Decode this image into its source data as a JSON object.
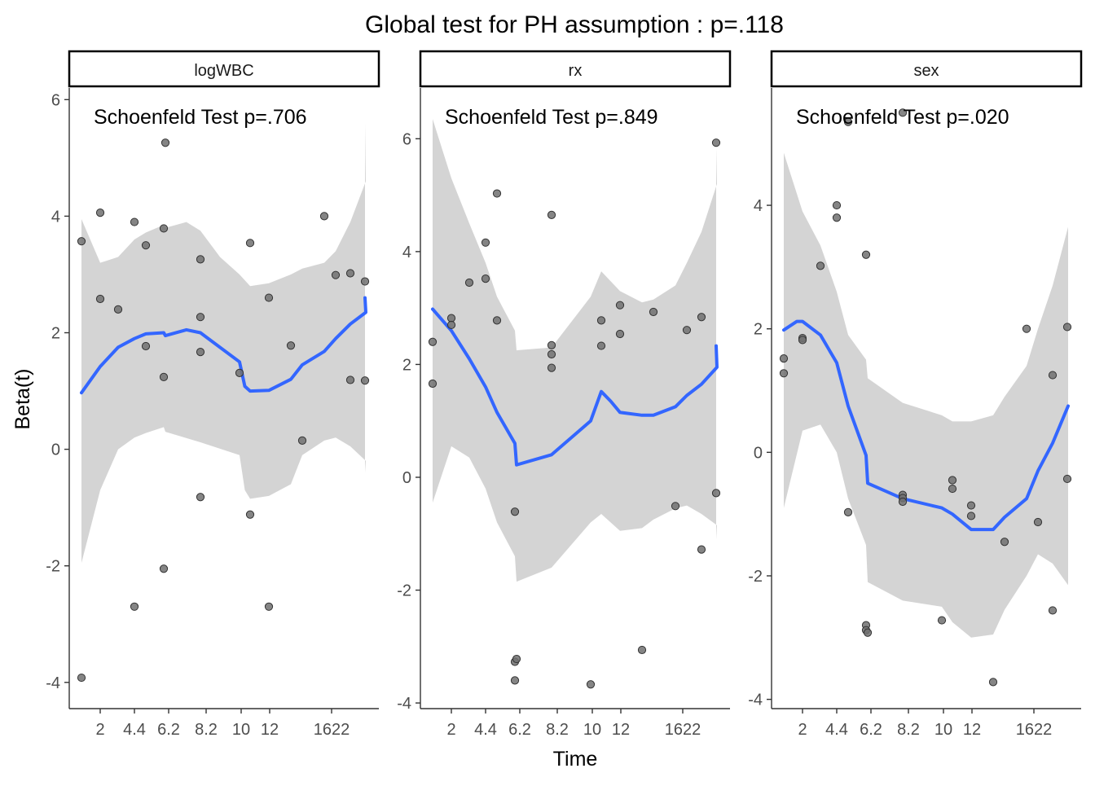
{
  "title": "Global test for PH assumption : p=.118",
  "xlabel": "Time",
  "ylabel": "Beta(t)",
  "colors": {
    "smooth": "#3366FF",
    "band": "#D4D4D4",
    "point_fill": "#707070",
    "point_stroke": "#333333",
    "axis": "#333333",
    "text": "#000000",
    "tick_text": "#4D4D4D"
  },
  "chart_data": [
    {
      "type": "scatter",
      "panel": "logWBC",
      "annotation": "Schoenfeld Test p=.706",
      "x_ticks": [
        "2",
        "4.4",
        "6.2",
        "8.2",
        "10",
        "12",
        "1622"
      ],
      "y_ticks": [
        -4,
        -2,
        0,
        2,
        4,
        6
      ],
      "ylim": [
        -4.45,
        6.2
      ],
      "points": [
        [
          0,
          3.57
        ],
        [
          0,
          -3.92
        ],
        [
          1,
          4.06
        ],
        [
          1,
          2.58
        ],
        [
          2,
          2.4
        ],
        [
          3,
          3.9
        ],
        [
          3,
          -2.7
        ],
        [
          4,
          3.5
        ],
        [
          4,
          1.77
        ],
        [
          5,
          3.79
        ],
        [
          5,
          1.24
        ],
        [
          5,
          -2.05
        ],
        [
          6,
          5.26
        ],
        [
          7,
          3.26
        ],
        [
          7,
          2.27
        ],
        [
          7,
          1.67
        ],
        [
          7,
          -0.82
        ],
        [
          8,
          1.31
        ],
        [
          9,
          3.54
        ],
        [
          9,
          -1.12
        ],
        [
          10,
          2.6
        ],
        [
          10,
          -2.7
        ],
        [
          11,
          1.78
        ],
        [
          12,
          0.15
        ],
        [
          13,
          4.0
        ],
        [
          14,
          2.99
        ],
        [
          15,
          3.02
        ],
        [
          15,
          1.19
        ],
        [
          17,
          2.88
        ],
        [
          17,
          1.18
        ]
      ],
      "smooth": [
        [
          0,
          0.97
        ],
        [
          1,
          1.42
        ],
        [
          2,
          1.75
        ],
        [
          3,
          1.9
        ],
        [
          4,
          1.98
        ],
        [
          5,
          2.0
        ],
        [
          6,
          1.95
        ],
        [
          6.6,
          2.05
        ],
        [
          7,
          2.0
        ],
        [
          8,
          1.5
        ],
        [
          8.5,
          1.08
        ],
        [
          9,
          1.0
        ],
        [
          10,
          1.01
        ],
        [
          11,
          1.2
        ],
        [
          12,
          1.45
        ],
        [
          13,
          1.68
        ],
        [
          14,
          1.9
        ],
        [
          15,
          2.15
        ],
        [
          16,
          2.35
        ],
        [
          17,
          2.6
        ]
      ],
      "band_upper": [
        [
          0,
          3.95
        ],
        [
          1,
          3.2
        ],
        [
          2,
          3.3
        ],
        [
          3,
          3.6
        ],
        [
          4,
          3.72
        ],
        [
          5,
          3.85
        ],
        [
          6,
          3.8
        ],
        [
          6.6,
          3.9
        ],
        [
          7,
          3.75
        ],
        [
          7.5,
          3.3
        ],
        [
          8,
          3.0
        ],
        [
          8.5,
          2.9
        ],
        [
          9,
          2.8
        ],
        [
          10,
          2.85
        ],
        [
          11,
          3.0
        ],
        [
          12,
          3.1
        ],
        [
          13,
          3.2
        ],
        [
          14,
          3.4
        ],
        [
          15,
          3.9
        ],
        [
          16,
          4.6
        ],
        [
          17,
          5.6
        ]
      ],
      "band_lower": [
        [
          0,
          -1.95
        ],
        [
          1,
          -0.7
        ],
        [
          2,
          0.0
        ],
        [
          3,
          0.2
        ],
        [
          4,
          0.28
        ],
        [
          5,
          0.38
        ],
        [
          6,
          0.3
        ],
        [
          7,
          0.12
        ],
        [
          8,
          -0.1
        ],
        [
          8.5,
          -0.7
        ],
        [
          9,
          -0.85
        ],
        [
          10,
          -0.8
        ],
        [
          11,
          -0.6
        ],
        [
          12,
          -0.1
        ],
        [
          13,
          0.15
        ],
        [
          14,
          0.2
        ],
        [
          15,
          0.05
        ],
        [
          16,
          -0.2
        ],
        [
          17,
          -0.4
        ]
      ]
    },
    {
      "type": "scatter",
      "panel": "rx",
      "annotation": "Schoenfeld Test p=.849",
      "x_ticks": [
        "2",
        "4.4",
        "6.2",
        "8.2",
        "10",
        "12",
        "1622"
      ],
      "y_ticks": [
        -4,
        -2,
        0,
        2,
        4,
        6
      ],
      "ylim": [
        -4.1,
        6.9
      ],
      "points": [
        [
          0,
          2.4
        ],
        [
          0,
          1.66
        ],
        [
          1,
          2.82
        ],
        [
          1,
          2.7
        ],
        [
          2,
          3.45
        ],
        [
          3,
          4.16
        ],
        [
          3,
          3.52
        ],
        [
          4,
          5.03
        ],
        [
          4,
          2.78
        ],
        [
          5,
          -0.61
        ],
        [
          5,
          -3.27
        ],
        [
          5,
          -3.6
        ],
        [
          6,
          -3.22
        ],
        [
          7,
          4.65
        ],
        [
          7,
          2.34
        ],
        [
          7,
          2.18
        ],
        [
          7,
          1.94
        ],
        [
          8,
          -3.67
        ],
        [
          9,
          2.78
        ],
        [
          9,
          2.33
        ],
        [
          10,
          3.05
        ],
        [
          10,
          2.54
        ],
        [
          11,
          -3.06
        ],
        [
          12,
          2.93
        ],
        [
          13,
          -0.51
        ],
        [
          14,
          2.61
        ],
        [
          15,
          2.84
        ],
        [
          15,
          -1.28
        ],
        [
          17,
          5.93
        ],
        [
          17,
          -0.28
        ]
      ],
      "smooth": [
        [
          0,
          2.98
        ],
        [
          1,
          2.6
        ],
        [
          2,
          2.1
        ],
        [
          3,
          1.6
        ],
        [
          4,
          1.15
        ],
        [
          5,
          0.6
        ],
        [
          6,
          0.22
        ],
        [
          7,
          0.4
        ],
        [
          8,
          1.0
        ],
        [
          9,
          1.52
        ],
        [
          9.5,
          1.35
        ],
        [
          10,
          1.15
        ],
        [
          11,
          1.1
        ],
        [
          12,
          1.1
        ],
        [
          13,
          1.25
        ],
        [
          14,
          1.45
        ],
        [
          15,
          1.65
        ],
        [
          16,
          1.95
        ],
        [
          17,
          2.33
        ]
      ],
      "band_upper": [
        [
          0,
          6.35
        ],
        [
          1,
          5.3
        ],
        [
          2,
          4.5
        ],
        [
          3,
          3.8
        ],
        [
          4,
          3.2
        ],
        [
          5,
          2.6
        ],
        [
          6,
          2.25
        ],
        [
          7,
          2.3
        ],
        [
          8,
          3.2
        ],
        [
          9,
          3.65
        ],
        [
          10,
          3.3
        ],
        [
          11,
          3.1
        ],
        [
          12,
          3.15
        ],
        [
          13,
          3.4
        ],
        [
          14,
          3.8
        ],
        [
          15,
          4.35
        ],
        [
          16,
          5.2
        ],
        [
          17,
          5.85
        ]
      ],
      "band_lower": [
        [
          0,
          -0.45
        ],
        [
          1,
          0.55
        ],
        [
          2,
          0.35
        ],
        [
          3,
          -0.2
        ],
        [
          4,
          -0.8
        ],
        [
          5,
          -1.4
        ],
        [
          6,
          -1.85
        ],
        [
          7,
          -1.6
        ],
        [
          8,
          -0.8
        ],
        [
          9,
          -0.65
        ],
        [
          10,
          -0.95
        ],
        [
          11,
          -0.9
        ],
        [
          12,
          -0.75
        ],
        [
          13,
          -0.55
        ],
        [
          14,
          -0.5
        ],
        [
          15,
          -0.65
        ],
        [
          16,
          -0.85
        ],
        [
          17,
          -1.1
        ]
      ]
    },
    {
      "type": "scatter",
      "panel": "sex",
      "annotation": "Schoenfeld Test p=.020",
      "x_ticks": [
        "2",
        "4.4",
        "6.2",
        "8.2",
        "10",
        "12",
        "1622"
      ],
      "y_ticks": [
        -4,
        -2,
        0,
        2,
        4
      ],
      "ylim": [
        -4.15,
        5.9
      ],
      "points": [
        [
          0,
          1.52
        ],
        [
          0,
          1.28
        ],
        [
          1,
          1.85
        ],
        [
          1,
          1.82
        ],
        [
          2,
          3.02
        ],
        [
          3,
          4.0
        ],
        [
          3,
          3.8
        ],
        [
          4,
          5.35
        ],
        [
          4,
          -0.97
        ],
        [
          5,
          3.2
        ],
        [
          5,
          -2.8
        ],
        [
          5,
          -2.88
        ],
        [
          6,
          -2.92
        ],
        [
          7,
          5.5
        ],
        [
          7,
          -0.69
        ],
        [
          7,
          -0.74
        ],
        [
          7,
          -0.8
        ],
        [
          8,
          -2.72
        ],
        [
          9,
          -0.45
        ],
        [
          9,
          -0.59
        ],
        [
          10,
          -0.86
        ],
        [
          10,
          -1.03
        ],
        [
          11,
          -3.72
        ],
        [
          12,
          -1.45
        ],
        [
          13,
          2.0
        ],
        [
          14,
          -1.13
        ],
        [
          15,
          1.25
        ],
        [
          15,
          -2.56
        ],
        [
          17,
          2.03
        ],
        [
          17,
          -0.43
        ]
      ],
      "smooth": [
        [
          0,
          1.98
        ],
        [
          0.7,
          2.12
        ],
        [
          1,
          2.12
        ],
        [
          2,
          1.9
        ],
        [
          3,
          1.45
        ],
        [
          4,
          0.75
        ],
        [
          5,
          -0.05
        ],
        [
          6,
          -0.5
        ],
        [
          7,
          -0.75
        ],
        [
          8,
          -0.9
        ],
        [
          9,
          -1.0
        ],
        [
          10,
          -1.25
        ],
        [
          11,
          -1.25
        ],
        [
          12,
          -1.05
        ],
        [
          13,
          -0.75
        ],
        [
          14,
          -0.3
        ],
        [
          15,
          0.15
        ],
        [
          16,
          0.75
        ]
      ],
      "band_upper": [
        [
          0,
          4.85
        ],
        [
          1,
          3.9
        ],
        [
          2,
          3.35
        ],
        [
          3,
          2.6
        ],
        [
          4,
          1.9
        ],
        [
          5,
          1.5
        ],
        [
          6,
          1.2
        ],
        [
          7,
          0.8
        ],
        [
          8,
          0.6
        ],
        [
          9,
          0.5
        ],
        [
          10,
          0.5
        ],
        [
          11,
          0.6
        ],
        [
          12,
          0.9
        ],
        [
          13,
          1.4
        ],
        [
          14,
          2.0
        ],
        [
          15,
          2.7
        ],
        [
          16,
          3.65
        ]
      ],
      "band_lower": [
        [
          0,
          -0.9
        ],
        [
          1,
          0.35
        ],
        [
          2,
          0.45
        ],
        [
          3,
          0.0
        ],
        [
          4,
          -0.75
        ],
        [
          5,
          -1.5
        ],
        [
          6,
          -2.1
        ],
        [
          7,
          -2.4
        ],
        [
          8,
          -2.5
        ],
        [
          9,
          -2.75
        ],
        [
          10,
          -3.0
        ],
        [
          11,
          -2.95
        ],
        [
          12,
          -2.55
        ],
        [
          13,
          -2.0
        ],
        [
          14,
          -1.65
        ],
        [
          15,
          -1.8
        ],
        [
          16,
          -2.15
        ]
      ]
    }
  ]
}
